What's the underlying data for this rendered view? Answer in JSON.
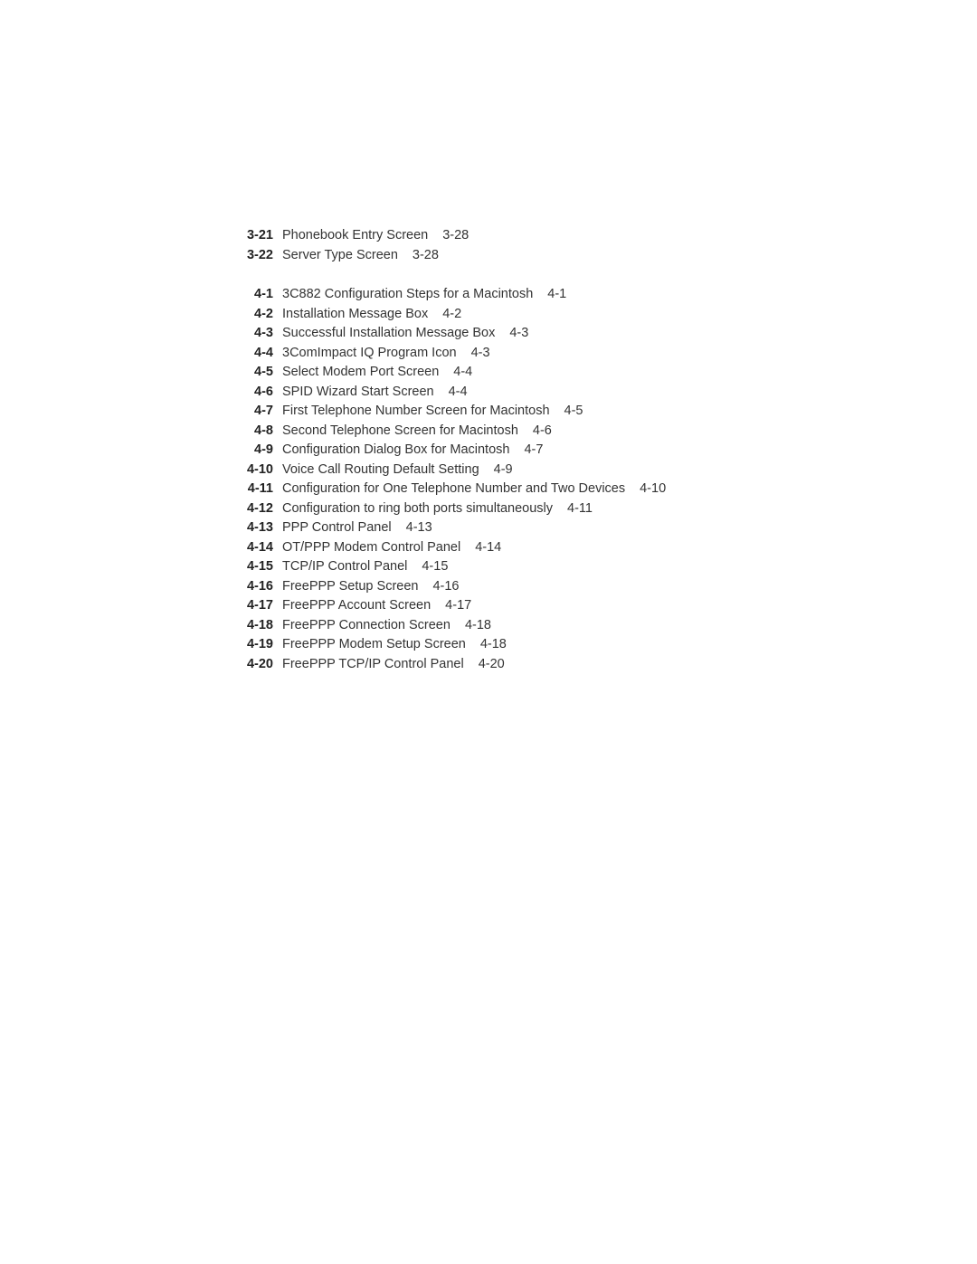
{
  "text_color": "#333333",
  "num_color": "#222222",
  "background_color": "#ffffff",
  "font_size_pt": 11,
  "groups": [
    {
      "entries": [
        {
          "num": "3-21",
          "title": "Phonebook Entry Screen",
          "page": "3-28"
        },
        {
          "num": "3-22",
          "title": "Server Type Screen",
          "page": "3-28"
        }
      ]
    },
    {
      "entries": [
        {
          "num": "4-1",
          "title": "3C882 Configuration Steps for a Macintosh",
          "page": "4-1"
        },
        {
          "num": "4-2",
          "title": "Installation Message Box",
          "page": "4-2"
        },
        {
          "num": "4-3",
          "title": "Successful Installation Message Box",
          "page": "4-3"
        },
        {
          "num": "4-4",
          "title": "3ComImpact IQ Program Icon",
          "page": "4-3"
        },
        {
          "num": "4-5",
          "title": "Select Modem Port Screen",
          "page": "4-4"
        },
        {
          "num": "4-6",
          "title": "SPID Wizard Start Screen",
          "page": "4-4"
        },
        {
          "num": "4-7",
          "title": "First Telephone Number Screen for Macintosh",
          "page": "4-5"
        },
        {
          "num": "4-8",
          "title": "Second Telephone Screen for Macintosh",
          "page": "4-6"
        },
        {
          "num": "4-9",
          "title": "Configuration Dialog Box for Macintosh",
          "page": "4-7"
        },
        {
          "num": "4-10",
          "title": "Voice Call Routing Default Setting",
          "page": "4-9"
        },
        {
          "num": "4-11",
          "title": "Configuration for One Telephone Number and Two Devices",
          "page": "4-10"
        },
        {
          "num": "4-12",
          "title": "Configuration to ring both ports simultaneously",
          "page": "4-11"
        },
        {
          "num": "4-13",
          "title": "PPP Control Panel",
          "page": "4-13"
        },
        {
          "num": "4-14",
          "title": "OT/PPP Modem Control Panel",
          "page": "4-14"
        },
        {
          "num": "4-15",
          "title": "TCP/IP Control Panel",
          "page": "4-15"
        },
        {
          "num": "4-16",
          "title": "FreePPP Setup Screen",
          "page": "4-16"
        },
        {
          "num": "4-17",
          "title": "FreePPP Account Screen",
          "page": "4-17"
        },
        {
          "num": "4-18",
          "title": "FreePPP Connection Screen",
          "page": "4-18"
        },
        {
          "num": "4-19",
          "title": "FreePPP Modem Setup Screen",
          "page": "4-18"
        },
        {
          "num": "4-20",
          "title": "FreePPP TCP/IP Control Panel",
          "page": "4-20"
        }
      ]
    }
  ]
}
